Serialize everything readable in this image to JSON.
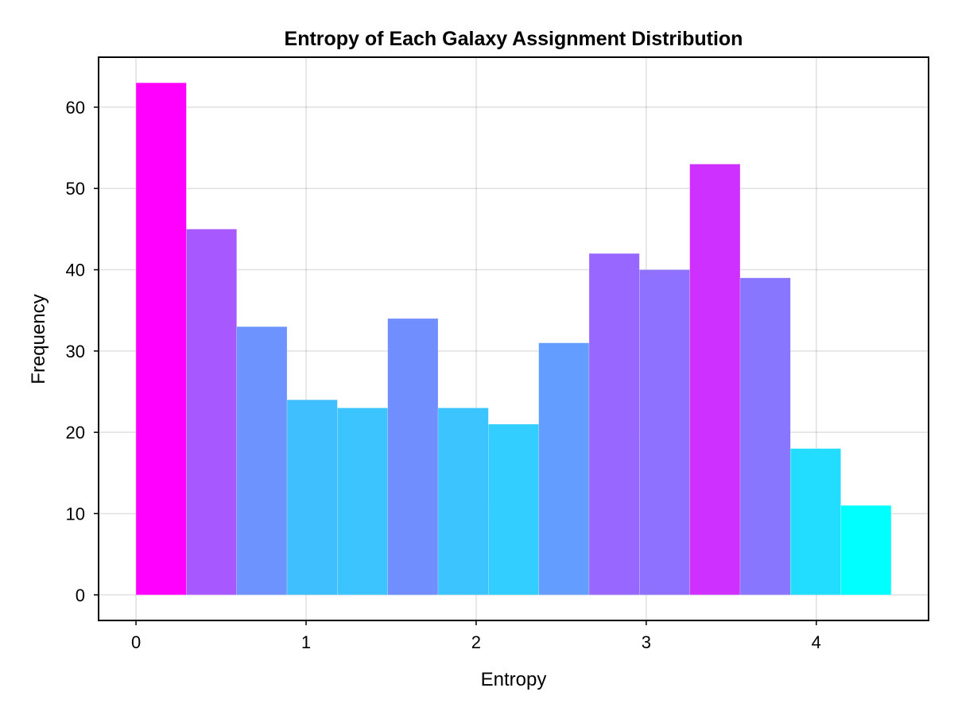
{
  "chart_data": {
    "type": "bar",
    "title": "Entropy of Each Galaxy Assignment Distribution",
    "xlabel": "Entropy",
    "ylabel": "Frequency",
    "bin_edges": [
      0.0,
      0.296,
      0.592,
      0.888,
      1.184,
      1.48,
      1.776,
      2.072,
      2.368,
      2.664,
      2.96,
      3.256,
      3.552,
      3.848,
      4.144,
      4.44
    ],
    "values": [
      63,
      45,
      33,
      24,
      23,
      34,
      23,
      21,
      31,
      42,
      40,
      53,
      39,
      18,
      11
    ],
    "xlim": [
      -0.22,
      4.66
    ],
    "ylim": [
      -3.15,
      66.15
    ],
    "xticks": [
      0,
      1,
      2,
      3,
      4
    ],
    "yticks": [
      0,
      10,
      20,
      30,
      40,
      50,
      60
    ],
    "grid": true,
    "colormap": {
      "low": "#00ffff",
      "high": "#ff00ff"
    }
  }
}
